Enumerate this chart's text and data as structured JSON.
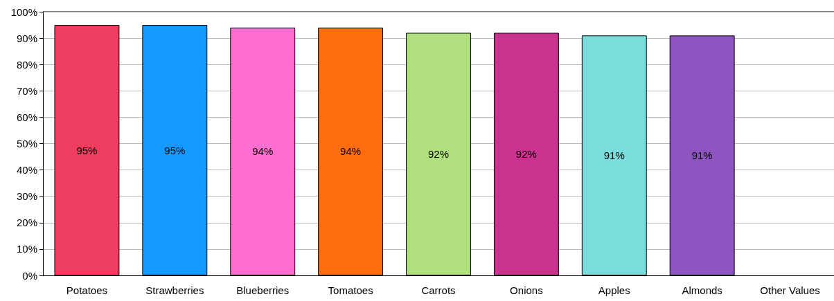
{
  "chart_data": {
    "type": "bar",
    "categories": [
      "Potatoes",
      "Strawberries",
      "Blueberries",
      "Tomatoes",
      "Carrots",
      "Onions",
      "Apples",
      "Almonds",
      "Other Values"
    ],
    "values": [
      95,
      95,
      94,
      94,
      92,
      92,
      91,
      91,
      null
    ],
    "colors": [
      "#ef3d5f",
      "#1499ff",
      "#ff6ecf",
      "#ff6d0f",
      "#b0e07e",
      "#c9328e",
      "#7bdcdc",
      "#8e54c0",
      null
    ],
    "value_labels": [
      "95%",
      "95%",
      "94%",
      "94%",
      "92%",
      "92%",
      "91%",
      "91%",
      null
    ],
    "ylim": [
      0,
      100
    ],
    "yticks": [
      {
        "value": 0,
        "label": "0%"
      },
      {
        "value": 10,
        "label": "10%"
      },
      {
        "value": 20,
        "label": "20%"
      },
      {
        "value": 30,
        "label": "30%"
      },
      {
        "value": 40,
        "label": "40%"
      },
      {
        "value": 50,
        "label": "50%"
      },
      {
        "value": 60,
        "label": "60%"
      },
      {
        "value": 70,
        "label": "70%"
      },
      {
        "value": 80,
        "label": "80%"
      },
      {
        "value": 90,
        "label": "90%"
      },
      {
        "value": 100,
        "label": "100%"
      }
    ],
    "grid": "y"
  }
}
